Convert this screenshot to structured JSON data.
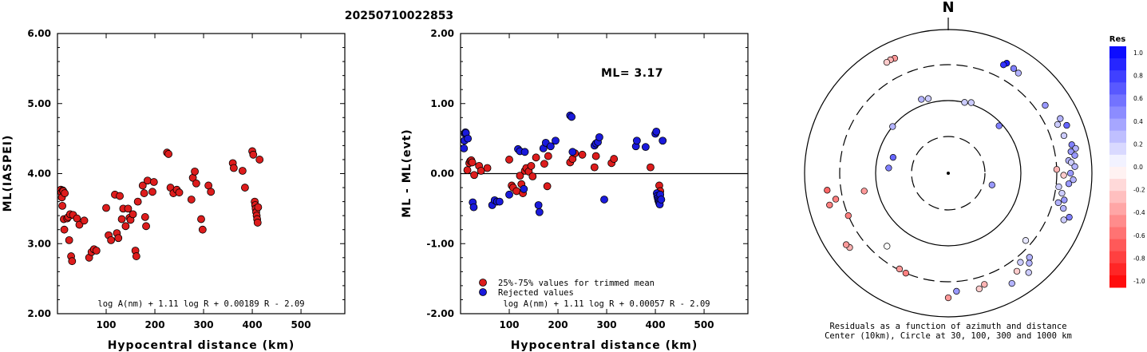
{
  "figure_title": "20250710022853",
  "chart_data": [
    {
      "type": "scatter",
      "xlabel": "Hypocentral distance (km)",
      "ylabel": "ML(IASPEI)",
      "xlim": [
        0,
        590
      ],
      "ylim": [
        2.0,
        6.0
      ],
      "x_ticks": [
        100,
        200,
        300,
        400,
        500
      ],
      "y_ticks": [
        2.0,
        3.0,
        4.0,
        5.0,
        6.0
      ],
      "y_tick_labels": [
        "2.00",
        "3.00",
        "4.00",
        "5.00",
        "6.00"
      ],
      "formula": "log A(nm) + 1.11 log R + 0.00189 R - 2.09",
      "marker_color": "#dd1c1c",
      "points": [
        [
          7,
          3.77
        ],
        [
          8,
          3.73
        ],
        [
          9,
          3.66
        ],
        [
          10,
          3.54
        ],
        [
          11,
          3.76
        ],
        [
          12,
          3.75
        ],
        [
          13,
          3.35
        ],
        [
          14,
          3.2
        ],
        [
          15,
          3.72
        ],
        [
          20,
          3.36
        ],
        [
          22,
          3.38
        ],
        [
          24,
          3.05
        ],
        [
          26,
          3.42
        ],
        [
          28,
          2.82
        ],
        [
          30,
          2.75
        ],
        [
          32,
          3.41
        ],
        [
          40,
          3.36
        ],
        [
          45,
          3.27
        ],
        [
          55,
          3.33
        ],
        [
          65,
          2.8
        ],
        [
          70,
          2.88
        ],
        [
          75,
          2.92
        ],
        [
          80,
          2.9
        ],
        [
          100,
          3.51
        ],
        [
          105,
          3.12
        ],
        [
          110,
          3.05
        ],
        [
          118,
          3.7
        ],
        [
          122,
          3.15
        ],
        [
          125,
          3.08
        ],
        [
          128,
          3.68
        ],
        [
          132,
          3.35
        ],
        [
          135,
          3.5
        ],
        [
          140,
          3.25
        ],
        [
          145,
          3.5
        ],
        [
          148,
          3.37
        ],
        [
          150,
          3.34
        ],
        [
          155,
          3.42
        ],
        [
          160,
          2.9
        ],
        [
          162,
          2.82
        ],
        [
          165,
          3.6
        ],
        [
          175,
          3.83
        ],
        [
          178,
          3.72
        ],
        [
          180,
          3.38
        ],
        [
          182,
          3.25
        ],
        [
          185,
          3.9
        ],
        [
          195,
          3.74
        ],
        [
          198,
          3.88
        ],
        [
          225,
          4.3
        ],
        [
          228,
          4.28
        ],
        [
          232,
          3.8
        ],
        [
          238,
          3.72
        ],
        [
          245,
          3.77
        ],
        [
          250,
          3.73
        ],
        [
          275,
          3.63
        ],
        [
          278,
          3.94
        ],
        [
          282,
          4.03
        ],
        [
          285,
          3.86
        ],
        [
          295,
          3.35
        ],
        [
          298,
          3.2
        ],
        [
          310,
          3.83
        ],
        [
          315,
          3.74
        ],
        [
          360,
          4.15
        ],
        [
          362,
          4.08
        ],
        [
          380,
          4.04
        ],
        [
          385,
          3.8
        ],
        [
          400,
          4.32
        ],
        [
          402,
          4.27
        ],
        [
          405,
          3.6
        ],
        [
          406,
          3.55
        ],
        [
          407,
          3.5
        ],
        [
          408,
          3.45
        ],
        [
          409,
          3.4
        ],
        [
          410,
          3.35
        ],
        [
          411,
          3.3
        ],
        [
          412,
          3.52
        ],
        [
          415,
          4.2
        ]
      ]
    },
    {
      "type": "scatter",
      "xlabel": "Hypocentral distance (km)",
      "ylabel": "ML - ML(evt)",
      "xlim": [
        0,
        590
      ],
      "ylim": [
        -2.0,
        2.0
      ],
      "x_ticks": [
        100,
        200,
        300,
        400,
        500
      ],
      "y_ticks": [
        -2.0,
        -1.0,
        0.0,
        1.0,
        2.0
      ],
      "y_tick_labels": [
        "-2.00",
        "-1.00",
        "0.00",
        "1.00",
        "2.00"
      ],
      "annotation": "ML= 3.17",
      "formula": "log A(nm) + 1.11 log R + 0.00057 R - 2.09",
      "reference_line": 0.0,
      "legend": [
        {
          "label": "25%-75% values for trimmed mean",
          "color": "#dd1c1c"
        },
        {
          "label": "Rejected values",
          "color": "#1a1adc"
        }
      ],
      "series": [
        {
          "name": "25%-75% values for trimmed mean",
          "color": "#dd1c1c",
          "points": [
            [
              14,
              0.05
            ],
            [
              18,
              0.15
            ],
            [
              20,
              0.18
            ],
            [
              22,
              0.19
            ],
            [
              24,
              0.16
            ],
            [
              28,
              -0.02
            ],
            [
              38,
              0.11
            ],
            [
              42,
              0.04
            ],
            [
              55,
              0.08
            ],
            [
              100,
              0.2
            ],
            [
              105,
              -0.17
            ],
            [
              108,
              -0.2
            ],
            [
              115,
              -0.25
            ],
            [
              122,
              -0.03
            ],
            [
              125,
              -0.15
            ],
            [
              128,
              -0.28
            ],
            [
              132,
              0.04
            ],
            [
              135,
              0.08
            ],
            [
              140,
              0.03
            ],
            [
              145,
              0.11
            ],
            [
              148,
              -0.04
            ],
            [
              155,
              0.23
            ],
            [
              172,
              0.14
            ],
            [
              178,
              -0.18
            ],
            [
              180,
              0.25
            ],
            [
              225,
              0.16
            ],
            [
              230,
              0.21
            ],
            [
              235,
              0.29
            ],
            [
              250,
              0.27
            ],
            [
              275,
              0.09
            ],
            [
              278,
              0.25
            ],
            [
              310,
              0.15
            ],
            [
              315,
              0.21
            ],
            [
              390,
              0.09
            ],
            [
              408,
              -0.17
            ],
            [
              410,
              -0.25
            ]
          ]
        },
        {
          "name": "Rejected values",
          "color": "#1a1adc",
          "points": [
            [
              7,
              0.36
            ],
            [
              8,
              0.47
            ],
            [
              9,
              0.57
            ],
            [
              10,
              0.59
            ],
            [
              11,
              0.58
            ],
            [
              15,
              0.5
            ],
            [
              25,
              -0.41
            ],
            [
              27,
              -0.48
            ],
            [
              65,
              -0.45
            ],
            [
              70,
              -0.38
            ],
            [
              75,
              -0.4
            ],
            [
              80,
              -0.4
            ],
            [
              100,
              -0.3
            ],
            [
              118,
              0.35
            ],
            [
              122,
              0.32
            ],
            [
              130,
              -0.22
            ],
            [
              132,
              0.31
            ],
            [
              160,
              -0.45
            ],
            [
              162,
              -0.55
            ],
            [
              170,
              0.36
            ],
            [
              175,
              0.44
            ],
            [
              185,
              0.39
            ],
            [
              195,
              0.47
            ],
            [
              225,
              0.83
            ],
            [
              228,
              0.81
            ],
            [
              230,
              0.31
            ],
            [
              275,
              0.4
            ],
            [
              278,
              0.43
            ],
            [
              282,
              0.45
            ],
            [
              285,
              0.52
            ],
            [
              295,
              -0.37
            ],
            [
              360,
              0.39
            ],
            [
              362,
              0.47
            ],
            [
              380,
              0.38
            ],
            [
              400,
              0.57
            ],
            [
              402,
              0.6
            ],
            [
              403,
              -0.28
            ],
            [
              404,
              -0.32
            ],
            [
              405,
              -0.35
            ],
            [
              406,
              -0.38
            ],
            [
              407,
              -0.4
            ],
            [
              408,
              -0.42
            ],
            [
              409,
              -0.44
            ],
            [
              410,
              -0.3
            ],
            [
              412,
              -0.37
            ],
            [
              415,
              0.47
            ]
          ]
        }
      ]
    },
    {
      "type": "scatter",
      "subtype": "polar",
      "north_label": "N",
      "caption_line1": "Residuals as a function of azimuth and distance",
      "caption_line2": "Center (10km), Circle at 30, 100, 300 and 1000 km",
      "rings_km": [
        30,
        100,
        300,
        1000
      ],
      "colorbar": {
        "title": "Res",
        "min": -1.0,
        "max": 1.0,
        "tick_labels": [
          "1.0",
          "0.8",
          "0.6",
          "0.4",
          "0.2",
          "0.0",
          "-0.2",
          "-0.4",
          "-0.6",
          "-0.8",
          "-1.0"
        ],
        "positive_color": "#0000ff",
        "negative_color": "#ff0000",
        "zero_color": "#ffffff"
      },
      "stations": [
        {
          "az": 335,
          "dist_km": 560,
          "res": -0.4
        },
        {
          "az": 333,
          "dist_km": 570,
          "res": -0.3
        },
        {
          "az": 331,
          "dist_km": 560,
          "res": -0.2
        },
        {
          "az": 28,
          "dist_km": 520,
          "res": 0.9
        },
        {
          "az": 27,
          "dist_km": 470,
          "res": 0.8
        },
        {
          "az": 32,
          "dist_km": 500,
          "res": 0.5
        },
        {
          "az": 35,
          "dist_km": 480,
          "res": 0.3
        },
        {
          "az": 55,
          "dist_km": 420,
          "res": 0.4
        },
        {
          "az": 64,
          "dist_km": 520,
          "res": 0.3
        },
        {
          "az": 66,
          "dist_km": 440,
          "res": 0.2
        },
        {
          "az": 68,
          "dist_km": 580,
          "res": 0.6
        },
        {
          "az": 72,
          "dist_km": 470,
          "res": 0.2
        },
        {
          "az": 77,
          "dist_km": 560,
          "res": 0.5
        },
        {
          "az": 79,
          "dist_km": 620,
          "res": 0.3
        },
        {
          "az": 80,
          "dist_km": 520,
          "res": 0.4
        },
        {
          "az": 82,
          "dist_km": 580,
          "res": 0.4
        },
        {
          "az": 84,
          "dist_km": 460,
          "res": 0.3
        },
        {
          "az": 85,
          "dist_km": 500,
          "res": 0.2
        },
        {
          "az": 87,
          "dist_km": 560,
          "res": 0.3
        },
        {
          "az": 88,
          "dist_km": 300,
          "res": -0.3
        },
        {
          "az": 90,
          "dist_km": 480,
          "res": 0.4
        },
        {
          "az": 91,
          "dist_km": 380,
          "res": -0.2
        },
        {
          "az": 93,
          "dist_km": 530,
          "res": 0.3
        },
        {
          "az": 95,
          "dist_km": 460,
          "res": 0.4
        },
        {
          "az": 97,
          "dist_km": 330,
          "res": 0.2
        },
        {
          "az": 100,
          "dist_km": 380,
          "res": 0.2
        },
        {
          "az": 103,
          "dist_km": 430,
          "res": 0.4
        },
        {
          "az": 105,
          "dist_km": 360,
          "res": 0.3
        },
        {
          "az": 107,
          "dist_km": 450,
          "res": 0.3
        },
        {
          "az": 110,
          "dist_km": 600,
          "res": 0.5
        },
        {
          "az": 112,
          "dist_km": 520,
          "res": 0.2
        },
        {
          "az": 131,
          "dist_km": 250,
          "res": 0.1
        },
        {
          "az": 136,
          "dist_km": 400,
          "res": 0.3
        },
        {
          "az": 138,
          "dist_km": 460,
          "res": 0.3
        },
        {
          "az": 141,
          "dist_km": 370,
          "res": 0.2
        },
        {
          "az": 141,
          "dist_km": 580,
          "res": 0.2
        },
        {
          "az": 145,
          "dist_km": 440,
          "res": -0.2
        },
        {
          "az": 150,
          "dist_km": 570,
          "res": 0.3
        },
        {
          "az": 162,
          "dist_km": 400,
          "res": -0.3
        },
        {
          "az": 165,
          "dist_km": 440,
          "res": -0.2
        },
        {
          "az": 176,
          "dist_km": 420,
          "res": 0.4
        },
        {
          "az": 180,
          "dist_km": 520,
          "res": -0.4
        },
        {
          "az": 203,
          "dist_km": 300,
          "res": -0.5
        },
        {
          "az": 207,
          "dist_km": 290,
          "res": -0.4
        },
        {
          "az": 220,
          "dist_km": 200,
          "res": 0.0
        },
        {
          "az": 233,
          "dist_km": 500,
          "res": -0.3
        },
        {
          "az": 235,
          "dist_km": 520,
          "res": -0.4
        },
        {
          "az": 247,
          "dist_km": 300,
          "res": -0.5
        },
        {
          "az": 255,
          "dist_km": 490,
          "res": -0.5
        },
        {
          "az": 257,
          "dist_km": 380,
          "res": -0.5
        },
        {
          "az": 262,
          "dist_km": 480,
          "res": -0.6
        },
        {
          "az": 286,
          "dist_km": 60,
          "res": 0.6
        },
        {
          "az": 275,
          "dist_km": 65,
          "res": 0.5
        },
        {
          "az": 258,
          "dist_km": 150,
          "res": -0.4
        },
        {
          "az": 340,
          "dist_km": 120,
          "res": 0.3
        },
        {
          "az": 345,
          "dist_km": 115,
          "res": 0.2
        },
        {
          "az": 13,
          "dist_km": 100,
          "res": 0.2
        },
        {
          "az": 18,
          "dist_km": 105,
          "res": 0.2
        },
        {
          "az": 47,
          "dist_km": 90,
          "res": 0.5
        },
        {
          "az": 105,
          "dist_km": 40,
          "res": 0.4
        },
        {
          "az": 310,
          "dist_km": 100,
          "res": 0.3
        }
      ]
    }
  ]
}
